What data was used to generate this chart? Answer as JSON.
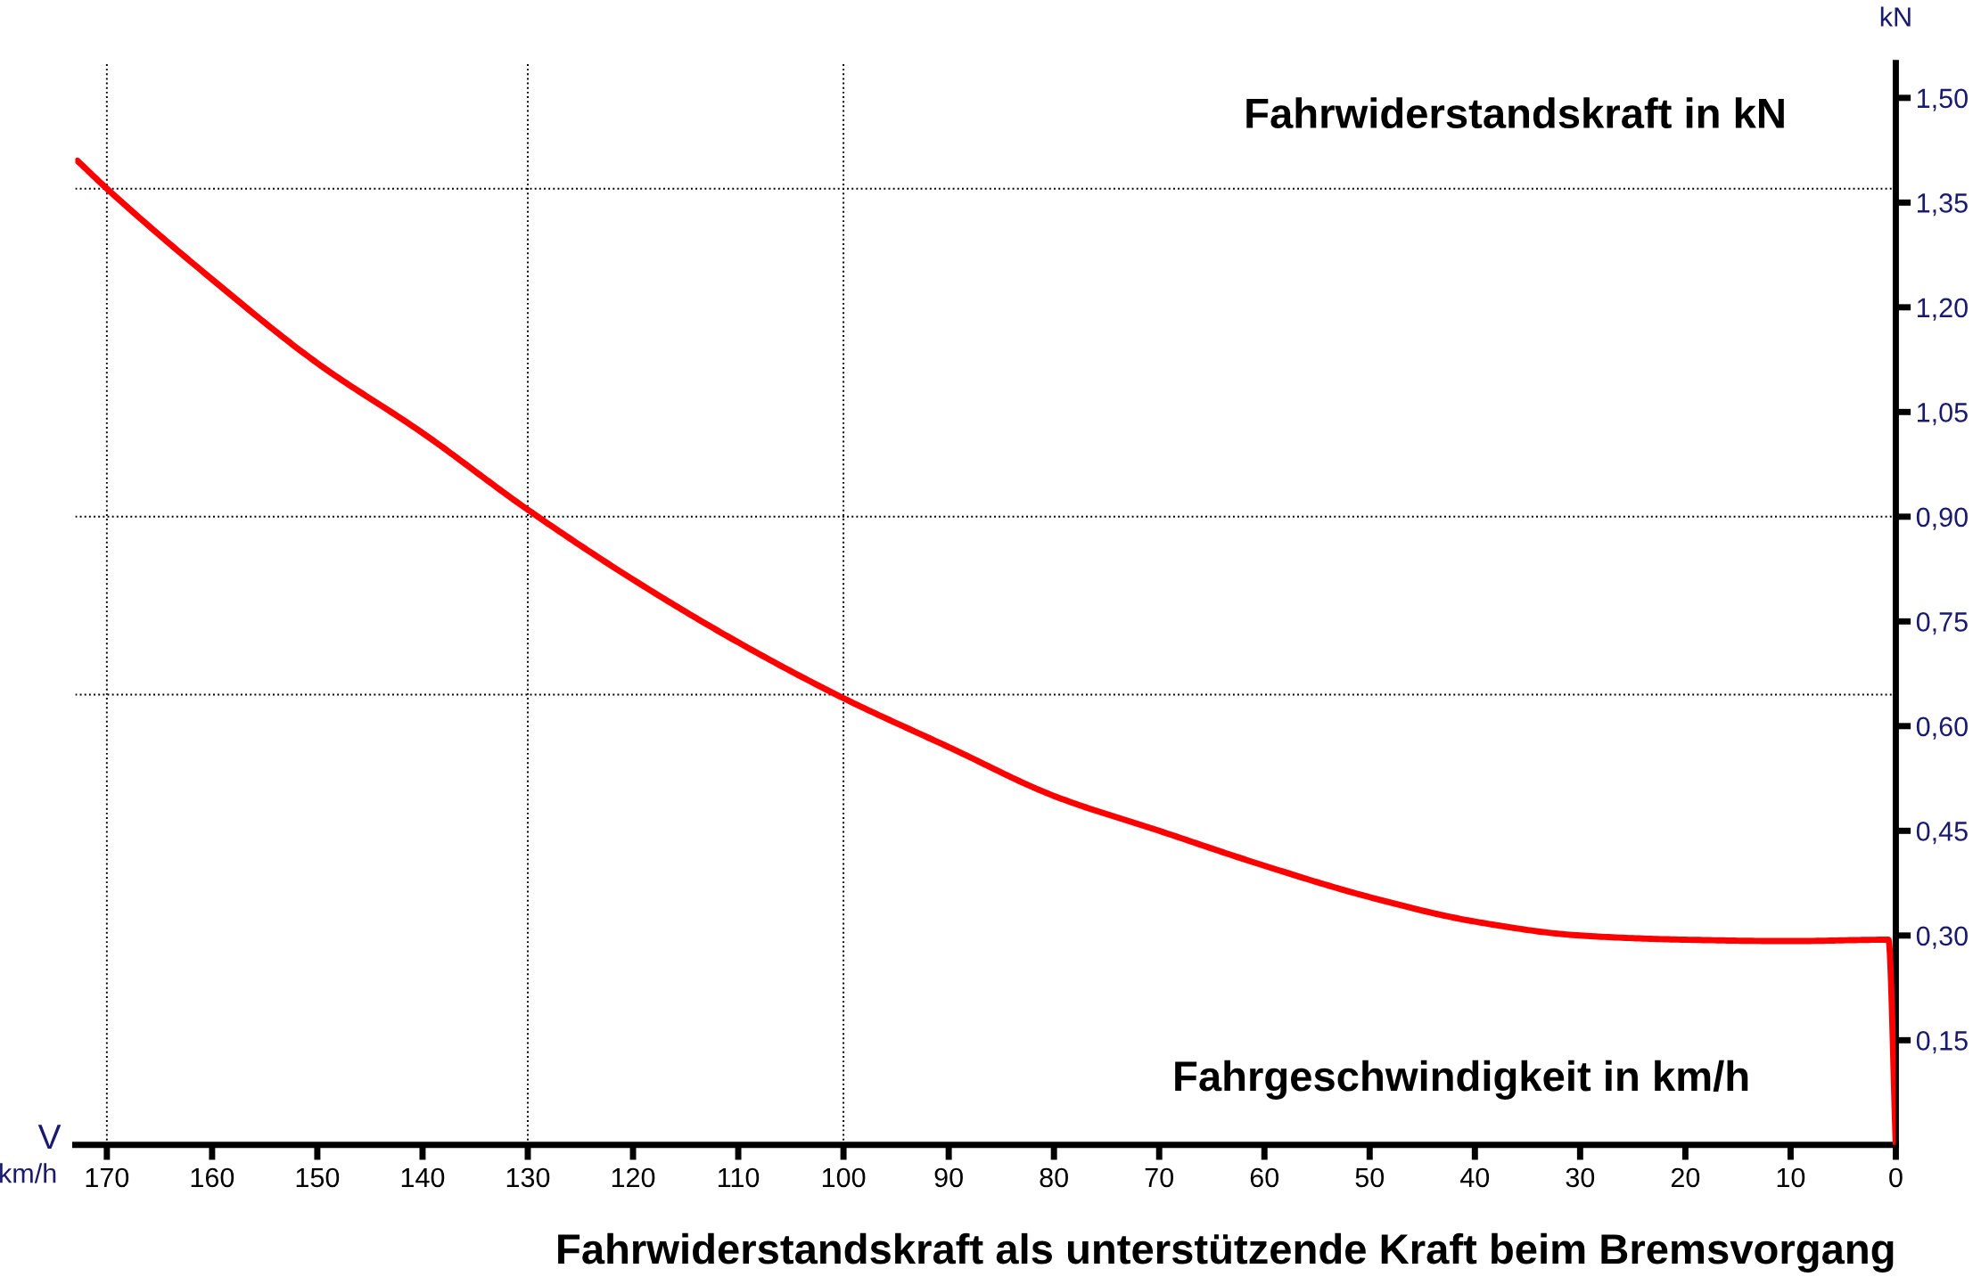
{
  "chart_data": {
    "type": "line",
    "title": "Fahrwiderstandskraft als unterstützende Kraft beim Bremsvorgang",
    "xlabel": "Fahrgeschwindigkeit in km/h",
    "ylabel": "Fahrwiderstandskraft in kN",
    "annotations": [
      "kN",
      "V",
      "km/h"
    ],
    "x": [
      172.8,
      170,
      160,
      150,
      140,
      130,
      120,
      110,
      100,
      90,
      80,
      70,
      60,
      50,
      40,
      30,
      20,
      10,
      0.7,
      0
    ],
    "series": [
      {
        "color": "#ff0000",
        "values": [
          1.41,
          1.37,
          1.24,
          1.12,
          1.02,
          0.91,
          0.81,
          0.72,
          0.64,
          0.57,
          0.5,
          0.45,
          0.4,
          0.355,
          0.32,
          0.3,
          0.294,
          0.292,
          0.294,
          0
        ]
      }
    ],
    "xlim": [
      173,
      0
    ],
    "ylim": [
      0,
      1.55
    ],
    "xticks": [
      170,
      160,
      150,
      140,
      130,
      120,
      110,
      100,
      90,
      80,
      70,
      60,
      50,
      40,
      30,
      20,
      10,
      0
    ],
    "yticks": [
      {
        "value": 0.15,
        "label": "0,15"
      },
      {
        "value": 0.3,
        "label": "0,30"
      },
      {
        "value": 0.45,
        "label": "0,45"
      },
      {
        "value": 0.6,
        "label": "0,60"
      },
      {
        "value": 0.75,
        "label": "0,75"
      },
      {
        "value": 0.9,
        "label": "0,90"
      },
      {
        "value": 1.05,
        "label": "1,05"
      },
      {
        "value": 1.2,
        "label": "1,20"
      },
      {
        "value": 1.35,
        "label": "1,35"
      },
      {
        "value": 1.5,
        "label": "1,50"
      }
    ],
    "ref_lines": [
      {
        "axis": "x",
        "value": 170,
        "color": "#000000",
        "line_style": "dotted"
      },
      {
        "axis": "x",
        "value": 130,
        "color": "#000000",
        "line_style": "dotted"
      },
      {
        "axis": "x",
        "value": 100,
        "color": "#000000",
        "line_style": "dotted"
      },
      {
        "axis": "y",
        "value": 1.37,
        "color": "#000000",
        "line_style": "dotted"
      },
      {
        "axis": "y",
        "value": 0.9,
        "color": "#000000",
        "line_style": "dotted"
      },
      {
        "axis": "y",
        "value": 0.645,
        "color": "#000000",
        "line_style": "dotted"
      }
    ],
    "grid": false,
    "legend": false,
    "marker": "none",
    "line_style": "solid"
  }
}
